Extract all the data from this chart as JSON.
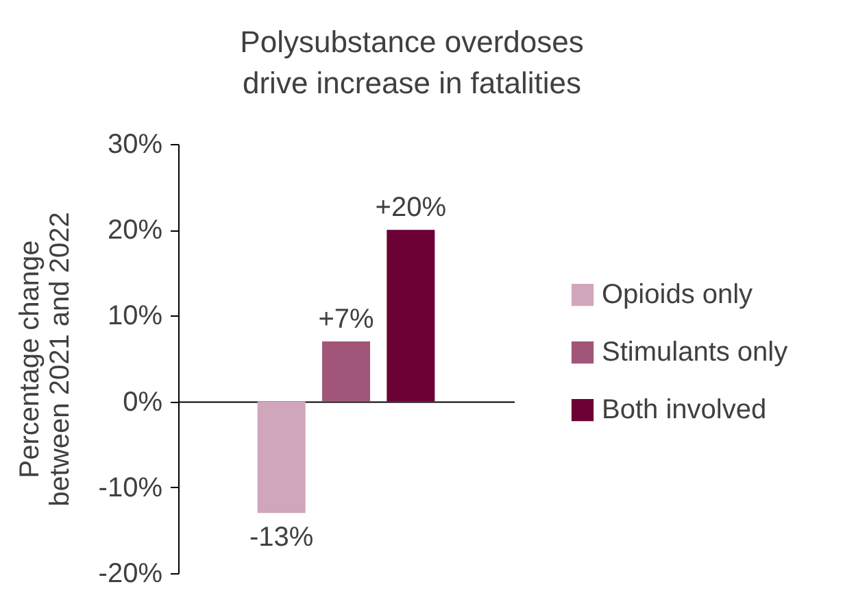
{
  "chart_data": {
    "type": "bar",
    "title": "Polysubstance overdoses drive increase in fatalities",
    "ylabel": "Percentage change between 2021 and 2022",
    "categories": [
      null
    ],
    "series": [
      {
        "name": "Opioids only",
        "color": "#d0a6bc",
        "values": [
          -13
        ],
        "value_labels": [
          "-13%"
        ]
      },
      {
        "name": "Stimulants only",
        "color": "#a05579",
        "values": [
          7
        ],
        "value_labels": [
          "+7%"
        ]
      },
      {
        "name": "Both involved",
        "color": "#6a0034",
        "values": [
          20
        ],
        "value_labels": [
          "+20%"
        ]
      }
    ],
    "ylim": [
      -20,
      30
    ],
    "yticks": [
      {
        "value": -20,
        "label": "-20%"
      },
      {
        "value": -10,
        "label": "-10%"
      },
      {
        "value": 0,
        "label": "0%"
      },
      {
        "value": 10,
        "label": "10%"
      },
      {
        "value": 20,
        "label": "20%"
      },
      {
        "value": 30,
        "label": "30%"
      }
    ],
    "legend": "right"
  }
}
